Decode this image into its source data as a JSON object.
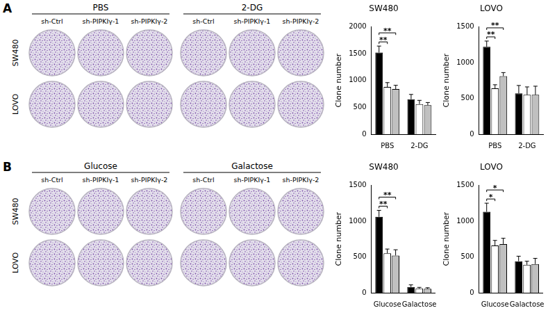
{
  "figure": {
    "panels": [
      {
        "label": "A",
        "groups": [
          "PBS",
          "2-DG"
        ],
        "columns": [
          "sh-Ctrl",
          "sh-PIPKIγ-1",
          "sh-PIPKIγ-2"
        ],
        "rows": [
          "SW480",
          "LOVO"
        ]
      },
      {
        "label": "B",
        "groups": [
          "Glucose",
          "Galactose"
        ],
        "columns": [
          "sh-Ctrl",
          "sh-PIPKIγ-1",
          "sh-PIPKIγ-2"
        ],
        "rows": [
          "SW480",
          "LOVO"
        ]
      }
    ]
  },
  "chart_data": [
    {
      "type": "bar",
      "title": "SW480",
      "y_label": "Clone number",
      "categories": [
        "PBS",
        "2-DG"
      ],
      "ylim": [
        0,
        2000
      ],
      "yticks": [
        0,
        500,
        1000,
        1500,
        2000
      ],
      "grid": false,
      "series": [
        {
          "color": "#000000",
          "values": [
            1520,
            650
          ],
          "errors": [
            120,
            90
          ]
        },
        {
          "color": "#ffffff",
          "values": [
            880,
            560
          ],
          "errors": [
            80,
            70
          ]
        },
        {
          "color": "#c0c0c0",
          "values": [
            840,
            540
          ],
          "errors": [
            70,
            50
          ]
        }
      ],
      "annotations": [
        {
          "category": "PBS",
          "from": 0,
          "to": 1,
          "label": "**"
        },
        {
          "category": "PBS",
          "from": 0,
          "to": 2,
          "label": "**"
        }
      ]
    },
    {
      "type": "bar",
      "title": "LOVO",
      "y_label": "Clone number",
      "categories": [
        "PBS",
        "2-DG"
      ],
      "ylim": [
        0,
        1500
      ],
      "yticks": [
        0,
        500,
        1000,
        1500
      ],
      "grid": false,
      "series": [
        {
          "color": "#000000",
          "values": [
            1220,
            570
          ],
          "errors": [
            80,
            110
          ]
        },
        {
          "color": "#ffffff",
          "values": [
            640,
            550
          ],
          "errors": [
            50,
            110
          ]
        },
        {
          "color": "#c0c0c0",
          "values": [
            810,
            550
          ],
          "errors": [
            50,
            120
          ]
        }
      ],
      "annotations": [
        {
          "category": "PBS",
          "from": 0,
          "to": 1,
          "label": "**"
        },
        {
          "category": "PBS",
          "from": 0,
          "to": 2,
          "label": "**"
        }
      ]
    },
    {
      "type": "bar",
      "title": "SW480",
      "y_label": "Clone number",
      "categories": [
        "Glucose",
        "Galactose"
      ],
      "ylim": [
        0,
        1500
      ],
      "yticks": [
        0,
        500,
        1000,
        1500
      ],
      "grid": false,
      "series": [
        {
          "color": "#000000",
          "values": [
            1060,
            80
          ],
          "errors": [
            90,
            30
          ]
        },
        {
          "color": "#ffffff",
          "values": [
            550,
            60
          ],
          "errors": [
            60,
            15
          ]
        },
        {
          "color": "#c0c0c0",
          "values": [
            520,
            55
          ],
          "errors": [
            80,
            15
          ]
        }
      ],
      "annotations": [
        {
          "category": "Glucose",
          "from": 0,
          "to": 1,
          "label": "**"
        },
        {
          "category": "Glucose",
          "from": 0,
          "to": 2,
          "label": "**"
        }
      ]
    },
    {
      "type": "bar",
      "title": "LOVO",
      "y_label": "Clone number",
      "categories": [
        "Glucose",
        "Galactose"
      ],
      "ylim": [
        0,
        1500
      ],
      "yticks": [
        0,
        500,
        1000,
        1500
      ],
      "grid": false,
      "series": [
        {
          "color": "#000000",
          "values": [
            1130,
            440
          ],
          "errors": [
            120,
            70
          ]
        },
        {
          "color": "#ffffff",
          "values": [
            660,
            390
          ],
          "errors": [
            70,
            50
          ]
        },
        {
          "color": "#c0c0c0",
          "values": [
            680,
            400
          ],
          "errors": [
            80,
            80
          ]
        }
      ],
      "annotations": [
        {
          "category": "Glucose",
          "from": 0,
          "to": 1,
          "label": "*"
        },
        {
          "category": "Glucose",
          "from": 0,
          "to": 2,
          "label": "*"
        }
      ]
    }
  ]
}
